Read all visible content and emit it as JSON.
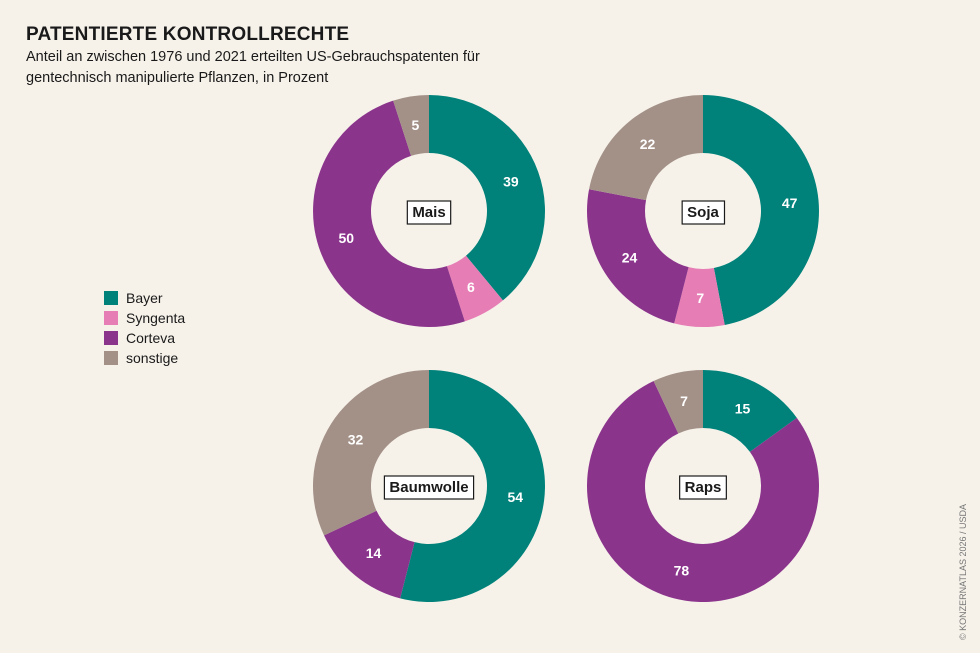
{
  "title": "PATENTIERTE KONTROLLRECHTE",
  "subtitle": "Anteil an zwischen 1976 und 2021 erteilten US-Gebrauchspatenten für gentechnisch manipulierte Pflanzen, in Prozent",
  "credit": "© KONZERNATLAS 2026 / USDA",
  "chart_data": {
    "type": "pie",
    "variant": "donut",
    "unit": "Prozent",
    "categories": [
      "Bayer",
      "Syngenta",
      "Corteva",
      "sonstige"
    ],
    "colors": {
      "Bayer": "#00827a",
      "Syngenta": "#e77db5",
      "Corteva": "#8b348c",
      "sonstige": "#a39188"
    },
    "legend_placement": "left",
    "charts": [
      {
        "label": "Mais",
        "values": [
          39,
          6,
          50,
          5
        ]
      },
      {
        "label": "Soja",
        "values": [
          47,
          7,
          24,
          22
        ]
      },
      {
        "label": "Baumwolle",
        "values": [
          54,
          0,
          14,
          32
        ]
      },
      {
        "label": "Raps",
        "values": [
          15,
          0,
          78,
          7
        ]
      }
    ]
  }
}
